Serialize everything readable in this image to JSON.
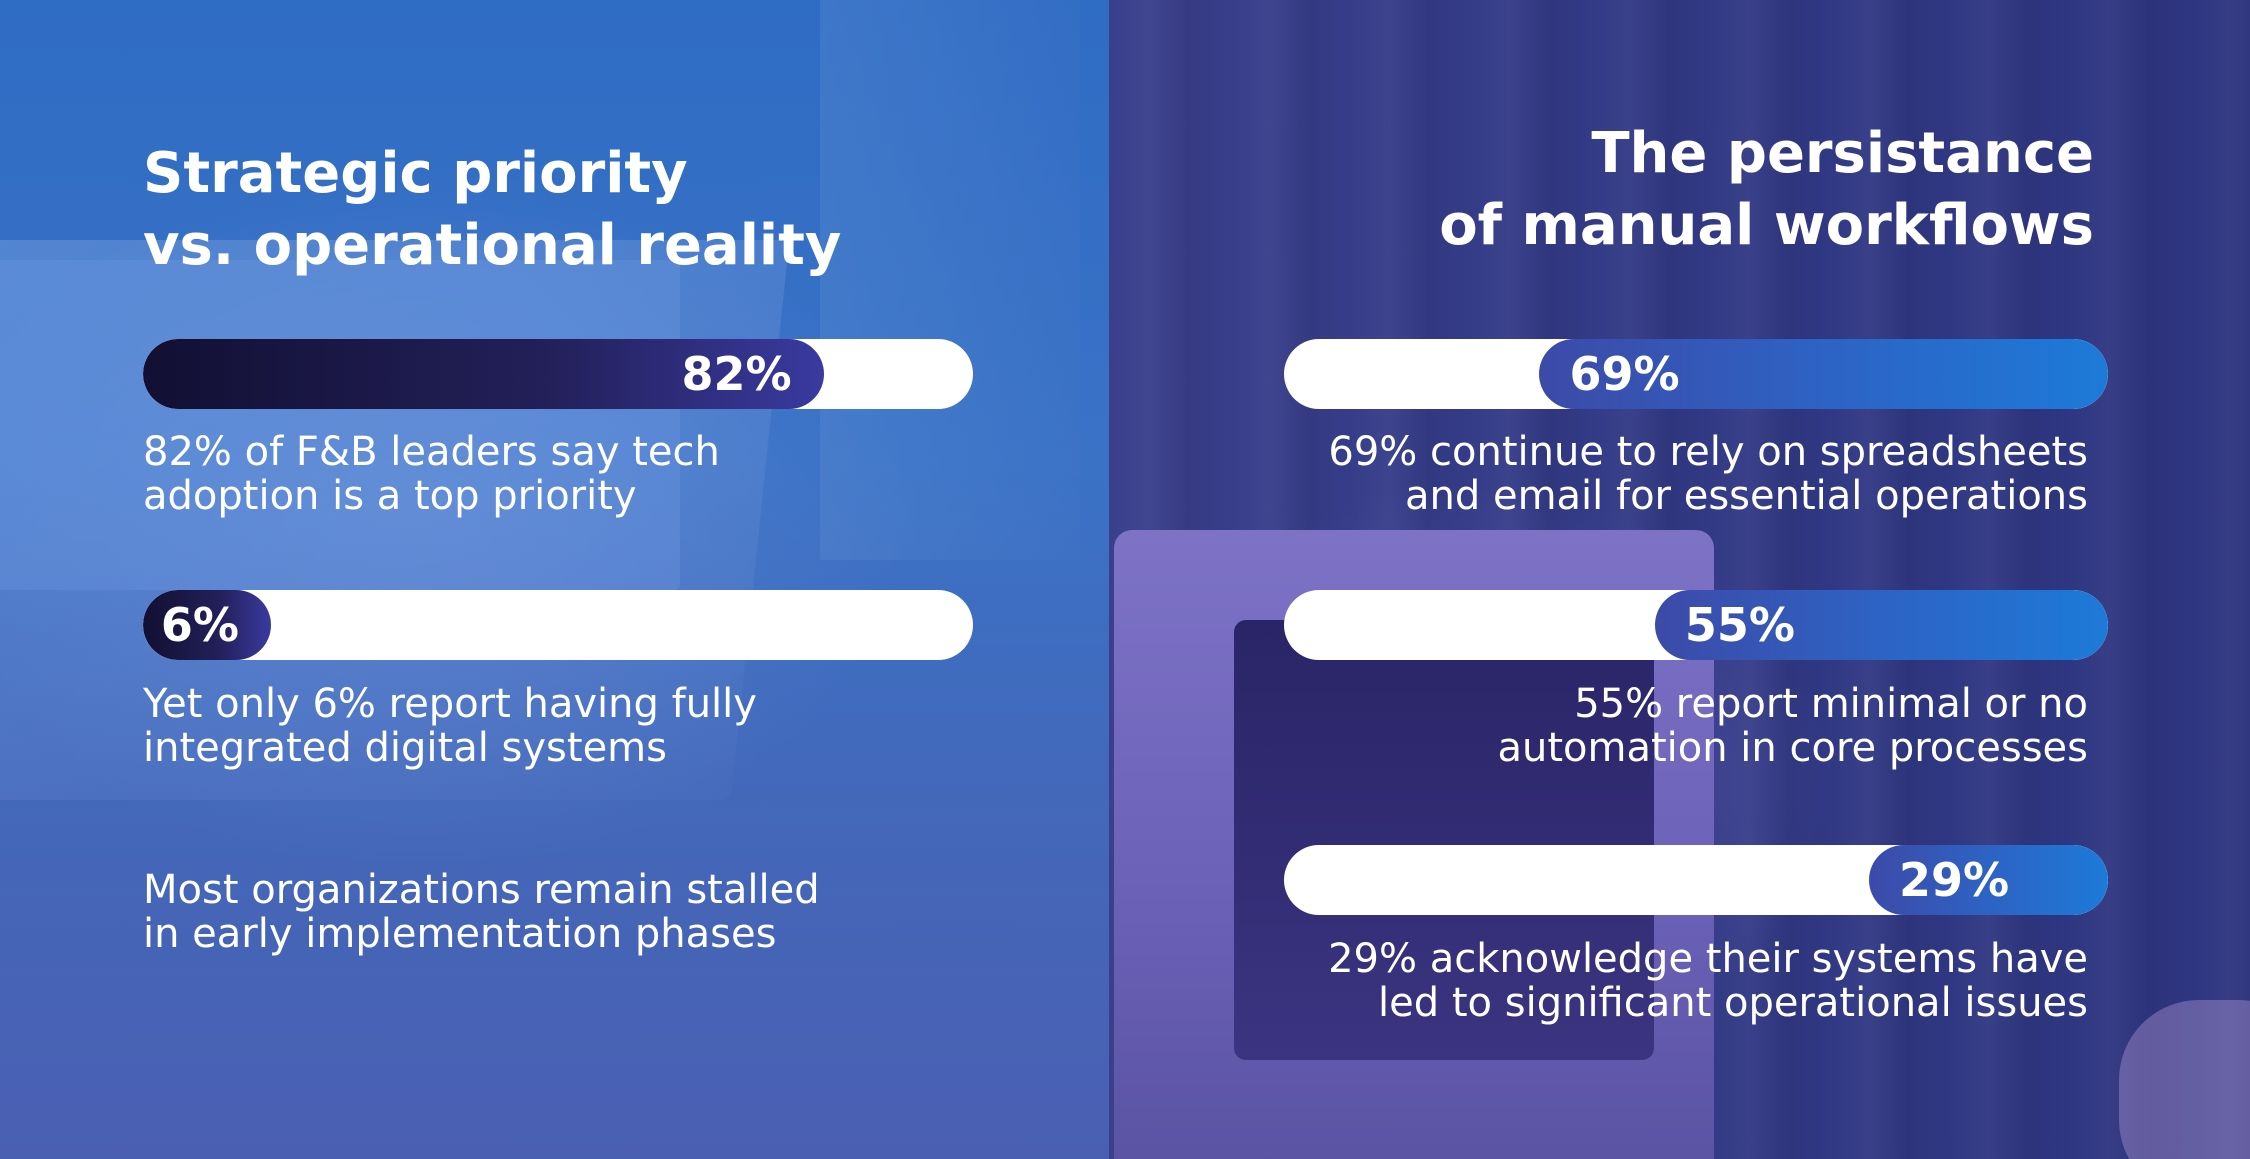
{
  "left_panel": {
    "title": "Strategic priority\nvs. operational reality",
    "bars": [
      {
        "value_label": "82%",
        "description": "82% of F&B leaders say tech\nadoption is a top priority"
      },
      {
        "value_label": "6%",
        "description": "Yet only 6% report having fully\nintegrated digital systems"
      }
    ],
    "footnote": "Most organizations remain stalled\nin early implementation phases"
  },
  "right_panel": {
    "title": "The persistance\nof manual workflows",
    "bars": [
      {
        "value_label": "69%",
        "description": "69% continue to rely on spreadsheets\nand email for essential operations"
      },
      {
        "value_label": "55%",
        "description": "55% report minimal or no\nautomation in core processes"
      },
      {
        "value_label": "29%",
        "description": "29% acknowledge their systems have\nled to significant operational issues"
      }
    ]
  },
  "chart_data": [
    {
      "type": "bar",
      "title": "Strategic priority vs. operational reality",
      "categories": [
        "82% of F&B leaders say tech adoption is a top priority",
        "Yet only 6% report having fully integrated digital systems"
      ],
      "values": [
        82,
        6
      ],
      "ylim": [
        0,
        100
      ],
      "unit": "%"
    },
    {
      "type": "bar",
      "title": "The persistance of manual workflows",
      "categories": [
        "69% continue to rely on spreadsheets and email for essential operations",
        "55% report minimal or no automation in core processes",
        "29% acknowledge their systems have led to significant operational issues"
      ],
      "values": [
        69,
        55,
        29
      ],
      "ylim": [
        0,
        100
      ],
      "unit": "%"
    }
  ],
  "colors": {
    "left_fill": "#1a1745",
    "right_fill": "#2a6bcc",
    "track": "#ffffff",
    "text": "#ffffff"
  }
}
